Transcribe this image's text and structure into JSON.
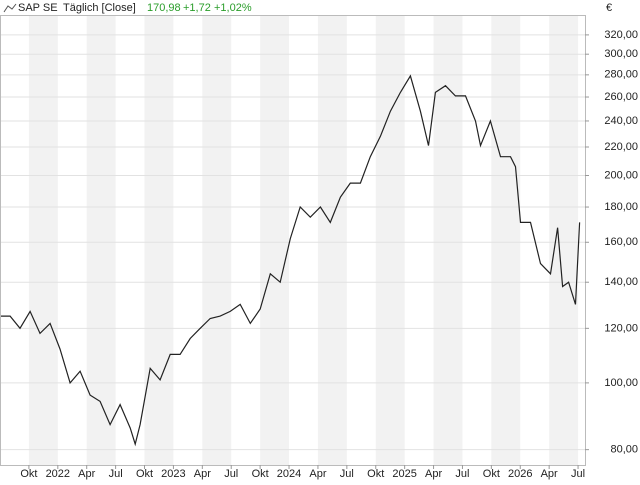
{
  "header": {
    "name": "SAP SE",
    "interval": "Täglich [Close]",
    "last": "170,98",
    "change": "+1,72",
    "change_pct": "+1,02%",
    "currency": "€"
  },
  "chart_data": {
    "type": "line",
    "log_scale": true,
    "grid": true,
    "color": "#222222",
    "x": [
      2021.5,
      2021.587,
      2021.673,
      2021.76,
      2021.846,
      2021.933,
      2022.019,
      2022.106,
      2022.193,
      2022.279,
      2022.366,
      2022.452,
      2022.539,
      2022.626,
      2022.669,
      2022.712,
      2022.799,
      2022.885,
      2022.972,
      2023.058,
      2023.145,
      2023.232,
      2023.318,
      2023.405,
      2023.491,
      2023.578,
      2023.665,
      2023.751,
      2023.838,
      2023.924,
      2024.011,
      2024.097,
      2024.184,
      2024.271,
      2024.357,
      2024.444,
      2024.53,
      2024.617,
      2024.703,
      2024.79,
      2024.877,
      2024.963,
      2025.05,
      2025.136,
      2025.206,
      2025.266,
      2025.353,
      2025.439,
      2025.526,
      2025.613,
      2025.656,
      2025.742,
      2025.829,
      2025.916,
      2025.959,
      2026.002,
      2026.089,
      2026.175,
      2026.262,
      2026.323,
      2026.366,
      2026.418,
      2026.478,
      2026.513
    ],
    "values": [
      125,
      125,
      120,
      127,
      118,
      122,
      112,
      100,
      104,
      96,
      94,
      87,
      93,
      86,
      81.5,
      87,
      105,
      101,
      110,
      110,
      116,
      120,
      124,
      125,
      127,
      130,
      122,
      128,
      144,
      140,
      162,
      180,
      174,
      180,
      171,
      186,
      195,
      195,
      213,
      228,
      248,
      264,
      279,
      248,
      221,
      264,
      270,
      261,
      261,
      240,
      221,
      240,
      213,
      213,
      206,
      171,
      171,
      149,
      144,
      168,
      138,
      140,
      130,
      170.98
    ],
    "xlim": [
      2021.5,
      2026.56
    ],
    "ylim": [
      76,
      342
    ],
    "xticks": [
      {
        "value": 2021.75,
        "label": "Okt"
      },
      {
        "value": 2022,
        "label": "2022"
      },
      {
        "value": 2022.25,
        "label": "Apr"
      },
      {
        "value": 2022.5,
        "label": "Jul"
      },
      {
        "value": 2022.75,
        "label": "Okt"
      },
      {
        "value": 2023,
        "label": "2023"
      },
      {
        "value": 2023.25,
        "label": "Apr"
      },
      {
        "value": 2023.5,
        "label": "Jul"
      },
      {
        "value": 2023.75,
        "label": "Okt"
      },
      {
        "value": 2024,
        "label": "2024"
      },
      {
        "value": 2024.25,
        "label": "Apr"
      },
      {
        "value": 2024.5,
        "label": "Jul"
      },
      {
        "value": 2024.75,
        "label": "Okt"
      },
      {
        "value": 2025,
        "label": "2025"
      },
      {
        "value": 2025.25,
        "label": "Apr"
      },
      {
        "value": 2025.5,
        "label": "Jul"
      },
      {
        "value": 2025.75,
        "label": "Okt"
      },
      {
        "value": 2026,
        "label": "2026"
      },
      {
        "value": 2026.25,
        "label": "Apr"
      },
      {
        "value": 2026.5,
        "label": "Jul"
      }
    ],
    "yticks": [
      {
        "value": 80,
        "label": "80,00"
      },
      {
        "value": 100,
        "label": "100,00"
      },
      {
        "value": 120,
        "label": "120,00"
      },
      {
        "value": 140,
        "label": "140,00"
      },
      {
        "value": 160,
        "label": "160,00"
      },
      {
        "value": 180,
        "label": "180,00"
      },
      {
        "value": 200,
        "label": "200,00"
      },
      {
        "value": 220,
        "label": "220,00"
      },
      {
        "value": 240,
        "label": "240,00"
      },
      {
        "value": 260,
        "label": "260,00"
      },
      {
        "value": 280,
        "label": "280,00"
      },
      {
        "value": 300,
        "label": "300,00"
      },
      {
        "value": 320,
        "label": "320,00"
      }
    ]
  }
}
